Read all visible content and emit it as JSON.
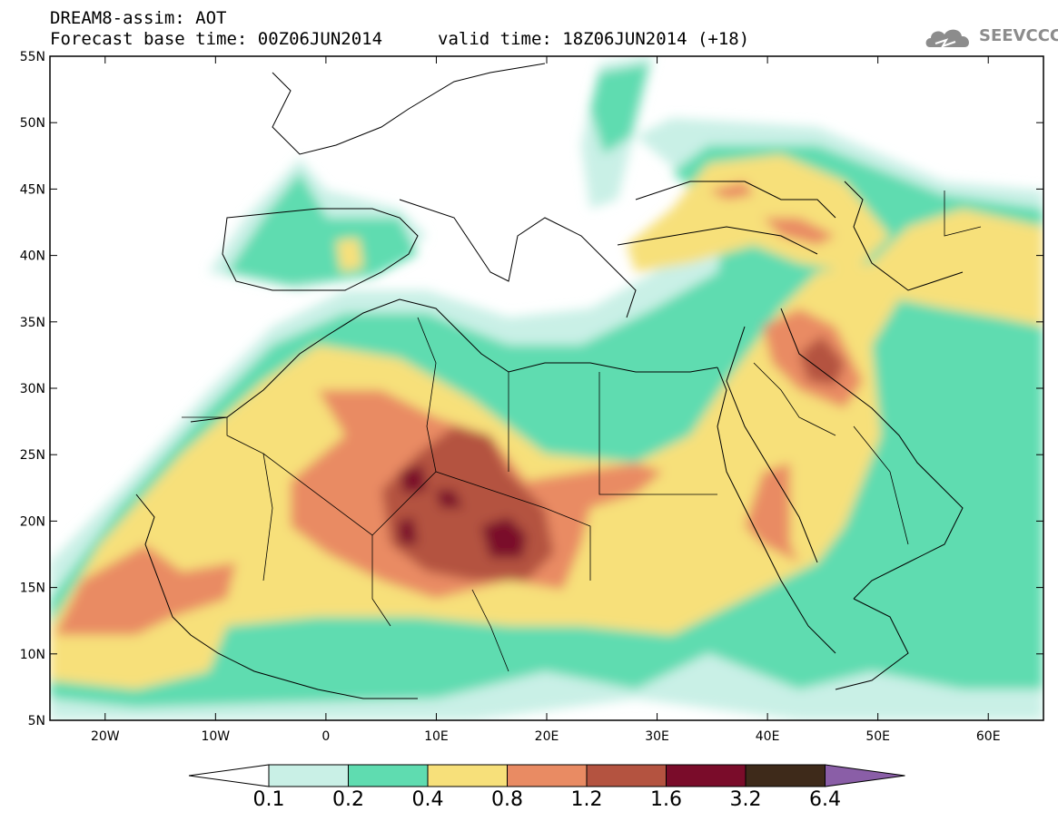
{
  "header": {
    "line1": "DREAM8-assim: AOT",
    "line2": "Forecast base time: 00Z06JUN2014",
    "valid": "valid time: 18Z06JUN2014 (+18)",
    "logo_text": "SEEVCCC",
    "logo_icon": "cloud-icon"
  },
  "map": {
    "lon_range": [
      -25,
      65
    ],
    "lat_range": [
      5,
      55
    ],
    "lat_ticks": [
      "5N",
      "10N",
      "15N",
      "20N",
      "25N",
      "30N",
      "35N",
      "40N",
      "45N",
      "50N",
      "55N"
    ],
    "lon_ticks": [
      "20W",
      "10W",
      "0",
      "10E",
      "20E",
      "30E",
      "40E",
      "50E",
      "60E"
    ]
  },
  "colorbar": {
    "labels": [
      "0.1",
      "0.2",
      "0.4",
      "0.8",
      "1.2",
      "1.6",
      "3.2",
      "6.4"
    ],
    "colors": [
      "#ffffff",
      "#c9f0e6",
      "#5fdcb0",
      "#f7e07a",
      "#e98b63",
      "#b45340",
      "#7a0c2a",
      "#3e2a1a",
      "#8a5ea7"
    ]
  }
}
